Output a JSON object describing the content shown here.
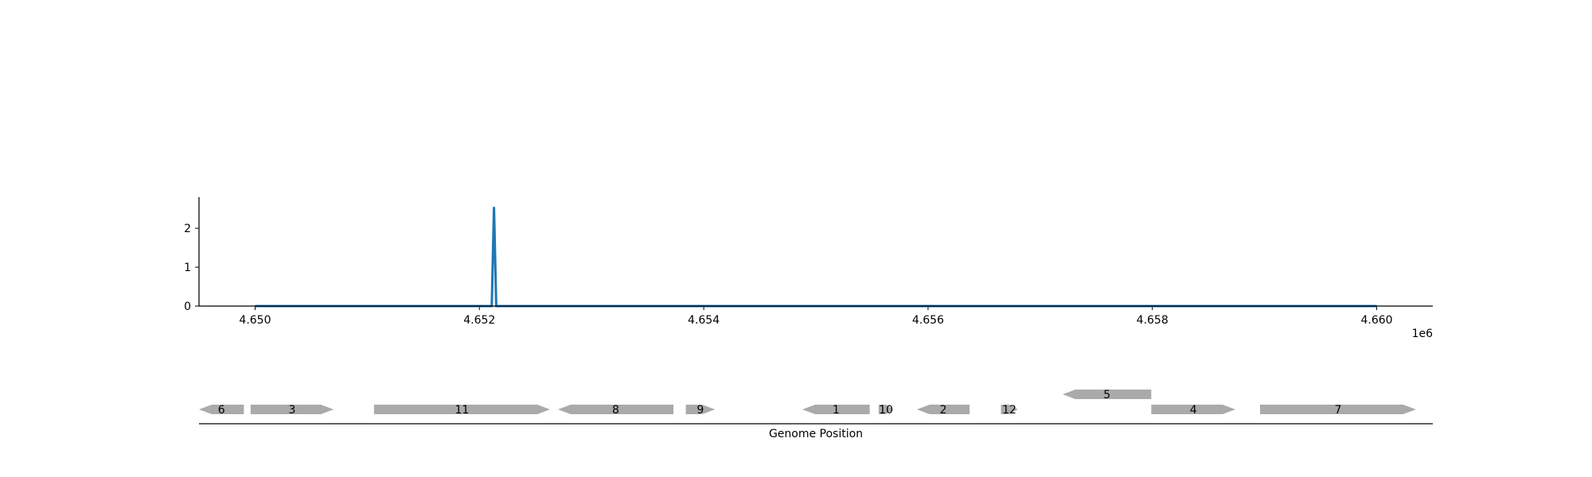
{
  "colors": {
    "signal": "#1f77b4",
    "gene": "#aaaaaa",
    "axis": "#000000"
  },
  "chart_data": [
    {
      "type": "line",
      "x": [
        4650000,
        4652110,
        4652130,
        4652150,
        4660000
      ],
      "y": [
        0,
        0,
        2.55,
        0,
        0
      ],
      "xlim": [
        4649500,
        4660500
      ],
      "ylim": [
        0,
        2.8
      ],
      "xticks": [
        4650000,
        4652000,
        4654000,
        4656000,
        4658000,
        4660000
      ],
      "xtick_labels": [
        "4.650",
        "4.652",
        "4.654",
        "4.656",
        "4.658",
        "4.660"
      ],
      "yticks": [
        0,
        1,
        2
      ],
      "ytick_labels": [
        "0",
        "1",
        "2"
      ],
      "x_offset_label": "1e6",
      "grid": false
    },
    {
      "type": "gene-track",
      "xlabel": "Genome Position",
      "genes": [
        {
          "label": "6",
          "start": 4649500,
          "end": 4649900,
          "strand": -1,
          "row": 0
        },
        {
          "label": "3",
          "start": 4649960,
          "end": 4650700,
          "strand": 1,
          "row": 0
        },
        {
          "label": "11",
          "start": 4651060,
          "end": 4652630,
          "strand": 1,
          "row": 0
        },
        {
          "label": "8",
          "start": 4652700,
          "end": 4653730,
          "strand": -1,
          "row": 0
        },
        {
          "label": "9",
          "start": 4653840,
          "end": 4654100,
          "strand": 1,
          "row": 0
        },
        {
          "label": "1",
          "start": 4654880,
          "end": 4655480,
          "strand": -1,
          "row": 0
        },
        {
          "label": "10",
          "start": 4655560,
          "end": 4655690,
          "strand": 1,
          "row": 0
        },
        {
          "label": "2",
          "start": 4655900,
          "end": 4656370,
          "strand": -1,
          "row": 0
        },
        {
          "label": "12",
          "start": 4656650,
          "end": 4656800,
          "strand": 1,
          "row": 0
        },
        {
          "label": "5",
          "start": 4657200,
          "end": 4657990,
          "strand": -1,
          "row": 1
        },
        {
          "label": "4",
          "start": 4657990,
          "end": 4658740,
          "strand": 1,
          "row": 0
        },
        {
          "label": "7",
          "start": 4658960,
          "end": 4660350,
          "strand": 1,
          "row": 0
        }
      ]
    }
  ]
}
